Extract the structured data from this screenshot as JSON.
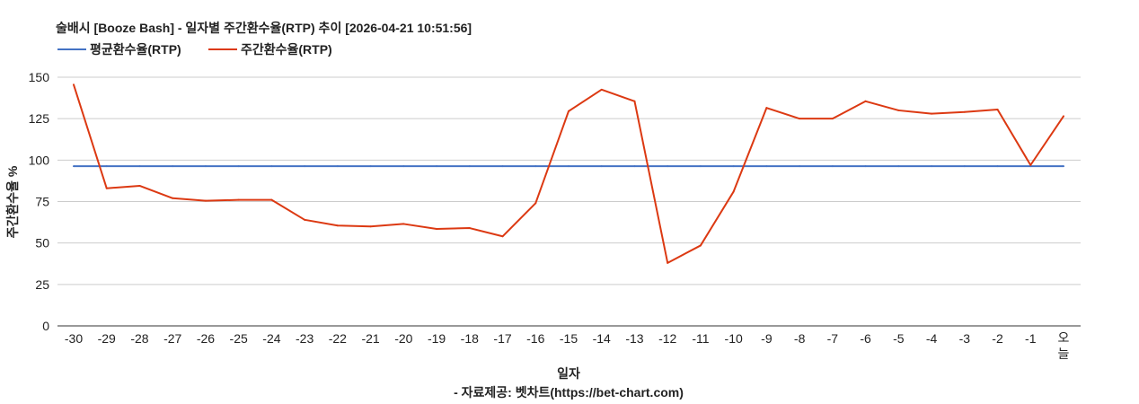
{
  "chart_data": {
    "type": "line",
    "title": "술배시 [Booze Bash] - 일자별 주간환수율(RTP) 추이 [2026-04-21 10:51:56]",
    "xlabel": "일자",
    "ylabel": "주간환수율 %",
    "source": "- 자료제공: 벳차트(https://bet-chart.com)",
    "categories": [
      "-30",
      "-29",
      "-28",
      "-27",
      "-26",
      "-25",
      "-24",
      "-23",
      "-22",
      "-21",
      "-20",
      "-19",
      "-18",
      "-17",
      "-16",
      "-15",
      "-14",
      "-13",
      "-12",
      "-11",
      "-10",
      "-9",
      "-8",
      "-7",
      "-6",
      "-5",
      "-4",
      "-3",
      "-2",
      "-1",
      "오늘"
    ],
    "ylim": [
      0,
      150
    ],
    "yticks": [
      0,
      25,
      50,
      75,
      100,
      125,
      150
    ],
    "grid": true,
    "legend_position": "top-left",
    "series": [
      {
        "name": "평균환수율(RTP)",
        "color": "#4472c4",
        "values": [
          96.3,
          96.3,
          96.3,
          96.3,
          96.3,
          96.3,
          96.3,
          96.3,
          96.3,
          96.3,
          96.3,
          96.3,
          96.3,
          96.3,
          96.3,
          96.3,
          96.3,
          96.3,
          96.3,
          96.3,
          96.3,
          96.3,
          96.3,
          96.3,
          96.3,
          96.3,
          96.3,
          96.3,
          96.3,
          96.3,
          96.3
        ]
      },
      {
        "name": "주간환수율(RTP)",
        "color": "#dc3912",
        "values": [
          145.5,
          83,
          84.5,
          77,
          75.5,
          76,
          76,
          64,
          60.5,
          60,
          61.5,
          58.5,
          59,
          54,
          74,
          129.5,
          142.5,
          135.5,
          38,
          48.5,
          81,
          131.5,
          125,
          125,
          135.5,
          130,
          128,
          129,
          130.5,
          97,
          126.5
        ]
      }
    ]
  }
}
